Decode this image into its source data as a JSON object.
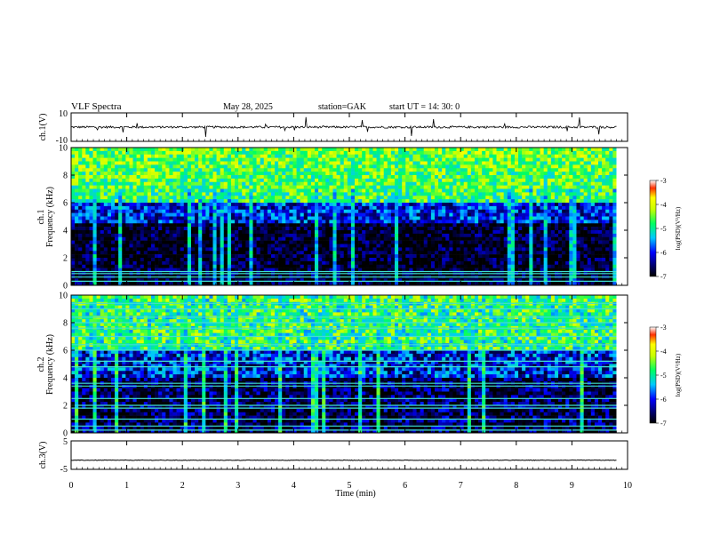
{
  "header": {
    "title": "VLF  Spectra",
    "date": "May 28, 2025",
    "station": "station=GAK",
    "start": "start  UT  =   14: 30: 0"
  },
  "chart_data": [
    {
      "type": "line",
      "panel": "waveform-ch1",
      "ylabel": "ch.1(V)",
      "yticks": [
        "10",
        "-10"
      ],
      "ylim": [
        -10,
        10
      ],
      "baseline": 0,
      "noise_amplitude": 1.5,
      "trace_color": "#000000"
    },
    {
      "type": "heatmap",
      "panel": "spectrogram-ch1",
      "ylabel_top": "ch.1",
      "ylabel": "Frequency  (kHz)",
      "ylim": [
        0,
        10
      ],
      "yticks": [
        "0",
        "2",
        "4",
        "6",
        "8",
        "10"
      ],
      "xlim": [
        0,
        10
      ],
      "xlim_data_end": 9.8,
      "colorbar": {
        "min": -7,
        "max": -3,
        "ticks": [
          "-3",
          "-4",
          "-5",
          "-6",
          "-7"
        ],
        "label": "log(PSD)(V²/Hz)"
      },
      "narrowband_lines_khz": [
        0.3,
        0.6,
        0.85,
        1.0
      ]
    },
    {
      "type": "heatmap",
      "panel": "spectrogram-ch2",
      "ylabel_top": "ch.2",
      "ylabel": "Frequency  (kHz)",
      "ylim": [
        0,
        10
      ],
      "yticks": [
        "0",
        "2",
        "4",
        "6",
        "8",
        "10"
      ],
      "xlim": [
        0,
        10
      ],
      "xlim_data_end": 9.8,
      "colorbar": {
        "min": -7,
        "max": -3,
        "ticks": [
          "-3",
          "-4",
          "-5",
          "-6",
          "-7"
        ],
        "label": "log(PSD)(V²/Hz)"
      },
      "narrowband_lines_khz": [
        0.2,
        0.5,
        1.0,
        1.8,
        2.0,
        2.5,
        3.4,
        3.6,
        4.8,
        5.2,
        6.0,
        6.4,
        7.0,
        7.6,
        8.0,
        8.4,
        9.0,
        9.4
      ]
    },
    {
      "type": "line",
      "panel": "waveform-ch3",
      "ylabel": "ch.3(V)",
      "yticks": [
        "5",
        "-5"
      ],
      "ylim": [
        -5,
        5
      ],
      "baseline": -1.8,
      "noise_amplitude": 0.2,
      "trace_color": "#000000",
      "xlabel": "Time  (min)",
      "xlim": [
        0,
        10
      ],
      "xticks": [
        "0",
        "1",
        "2",
        "3",
        "4",
        "5",
        "6",
        "7",
        "8",
        "9",
        "10"
      ]
    }
  ]
}
